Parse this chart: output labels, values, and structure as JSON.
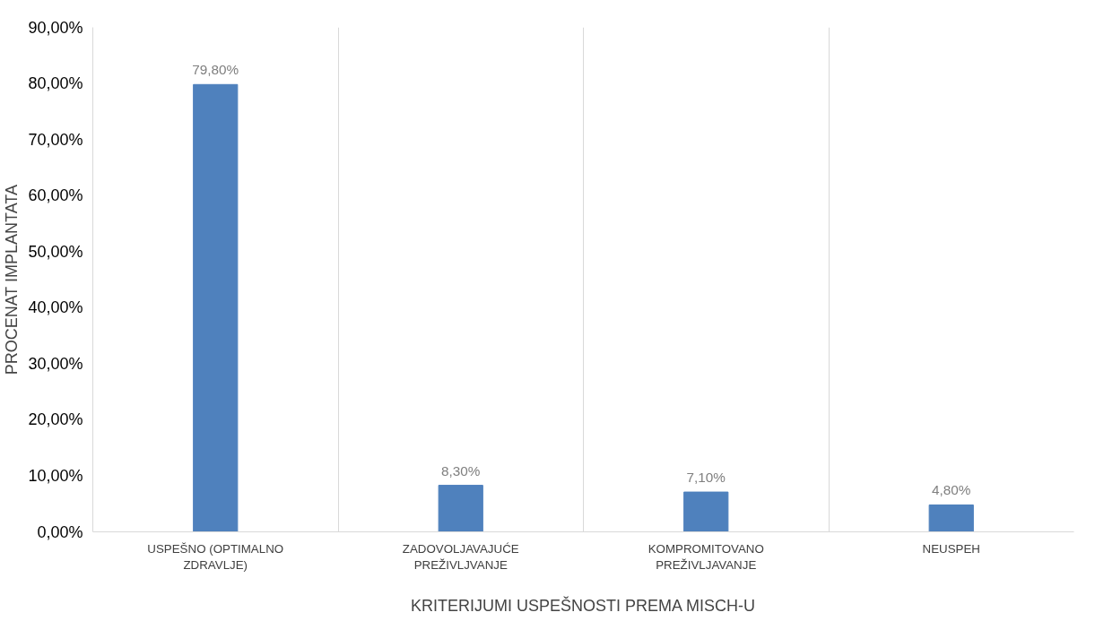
{
  "chart_data": {
    "type": "bar",
    "xlabel": "KRITERIJUMI USPEŠNOSTI PREMA MISCH-U",
    "ylabel": "PROCENAT IMPLANTATA",
    "categories": [
      "USPEŠNO (OPTIMALNO ZDRAVLJE)",
      "ZADOVOLJAVAJUĆE PREŽIVLJVANJE",
      "KOMPROMITOVANO PREŽIVLJAVANJE",
      "NEUSPEH"
    ],
    "values": [
      79.8,
      8.3,
      7.1,
      4.8
    ],
    "value_labels": [
      "79,80%",
      "8,30%",
      "7,10%",
      "4,80%"
    ],
    "color": "#4f81bd",
    "ylim": [
      0,
      90
    ],
    "yticks": [
      {
        "value": 0,
        "label": "0,00%"
      },
      {
        "value": 10,
        "label": "10,00%"
      },
      {
        "value": 20,
        "label": "20,00%"
      },
      {
        "value": 30,
        "label": "30,00%"
      },
      {
        "value": 40,
        "label": "40,00%"
      },
      {
        "value": 50,
        "label": "50,00%"
      },
      {
        "value": 60,
        "label": "60,00%"
      },
      {
        "value": 70,
        "label": "70,00%"
      },
      {
        "value": 80,
        "label": "80,00%"
      },
      {
        "value": 90,
        "label": "90,00%"
      }
    ],
    "grid": "x"
  }
}
